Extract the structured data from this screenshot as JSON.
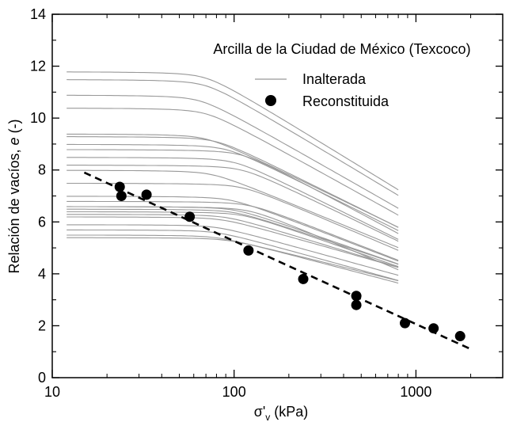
{
  "chart_data": {
    "type": "scatter",
    "title": "",
    "legend_title": "Arcilla de la Ciudad de México (Texcoco)",
    "legend_placement": "top-right",
    "xlabel": "σ'v (kPa)",
    "xlabel_main": "σ'",
    "xlabel_sub": "v",
    "xlabel_unit": " (kPa)",
    "ylabel": "Relación de vacíos, e (-)",
    "ylabel_main": "Relación de vacíos, ",
    "ylabel_italic": "e",
    "ylabel_unit": " (-)",
    "x_scale": "log",
    "xlim": [
      10,
      3000
    ],
    "ylim": [
      0,
      14
    ],
    "x_ticks": [
      10,
      100,
      1000
    ],
    "x_tick_labels": [
      "10",
      "100",
      "1000"
    ],
    "y_ticks": [
      0,
      2,
      4,
      6,
      8,
      10,
      12,
      14
    ],
    "y_tick_labels": [
      "0",
      "2",
      "4",
      "6",
      "8",
      "10",
      "12",
      "14"
    ],
    "grid": false,
    "colors": {
      "inalterada": "#999999",
      "reconstituida": "#000000"
    },
    "series": [
      {
        "name": "Inalterada",
        "style": "line",
        "curves": [
          {
            "e0": 11.8,
            "pc": 70,
            "cc": 4.3,
            "ef": 2.5
          },
          {
            "e0": 11.5,
            "pc": 70,
            "cc": 4.22,
            "ef": 2.6
          },
          {
            "e0": 10.9,
            "pc": 65,
            "cc": 4.0,
            "ef": 2.6
          },
          {
            "e0": 10.4,
            "pc": 70,
            "cc": 3.9,
            "ef": 2.7
          },
          {
            "e0": 9.4,
            "pc": 70,
            "cc": 3.4,
            "ef": 2.5
          },
          {
            "e0": 9.3,
            "pc": 80,
            "cc": 3.5,
            "ef": 2.6
          },
          {
            "e0": 9.0,
            "pc": 90,
            "cc": 3.5,
            "ef": 2.7
          },
          {
            "e0": 8.8,
            "pc": 110,
            "cc": 3.75,
            "ef": 2.9
          },
          {
            "e0": 8.5,
            "pc": 100,
            "cc": 3.5,
            "ef": 2.6
          },
          {
            "e0": 8.2,
            "pc": 110,
            "cc": 3.4,
            "ef": 2.7
          },
          {
            "e0": 7.5,
            "pc": 110,
            "cc": 3.0,
            "ef": 2.5
          },
          {
            "e0": 6.8,
            "pc": 120,
            "cc": 2.75,
            "ef": 2.5
          },
          {
            "e0": 6.6,
            "pc": 100,
            "cc": 2.45,
            "ef": 2.4
          },
          {
            "e0": 6.5,
            "pc": 100,
            "cc": 2.35,
            "ef": 2.3
          },
          {
            "e0": 6.4,
            "pc": 110,
            "cc": 2.45,
            "ef": 2.4
          },
          {
            "e0": 6.3,
            "pc": 90,
            "cc": 2.15,
            "ef": 2.1
          },
          {
            "e0": 6.6,
            "pc": 120,
            "cc": 2.95,
            "ef": 2.7
          },
          {
            "e0": 6.2,
            "pc": 85,
            "cc": 2.0,
            "ef": 2.0
          },
          {
            "e0": 5.9,
            "pc": 80,
            "cc": 1.95,
            "ef": 2.0
          },
          {
            "e0": 5.7,
            "pc": 80,
            "cc": 1.95,
            "ef": 2.0
          },
          {
            "e0": 5.5,
            "pc": 80,
            "cc": 1.85,
            "ef": 1.9
          },
          {
            "e0": 5.4,
            "pc": 90,
            "cc": 1.75,
            "ef": 2.2
          },
          {
            "e0": 7.0,
            "pc": 95,
            "cc": 2.7,
            "ef": 2.3
          },
          {
            "e0": 8.0,
            "pc": 75,
            "cc": 2.9,
            "ef": 2.3
          }
        ],
        "x_range": [
          12,
          800
        ]
      },
      {
        "name": "Reconstituida",
        "style": "marker",
        "points": [
          {
            "x": 23.5,
            "y": 7.35
          },
          {
            "x": 24,
            "y": 7.0
          },
          {
            "x": 33,
            "y": 7.05
          },
          {
            "x": 57,
            "y": 6.2
          },
          {
            "x": 120,
            "y": 4.9
          },
          {
            "x": 240,
            "y": 3.8
          },
          {
            "x": 470,
            "y": 3.15
          },
          {
            "x": 470,
            "y": 2.8
          },
          {
            "x": 870,
            "y": 2.1
          },
          {
            "x": 1250,
            "y": 1.9
          },
          {
            "x": 1750,
            "y": 1.6
          }
        ]
      },
      {
        "style": "dashed-line",
        "points": [
          {
            "x": 15,
            "y": 7.9
          },
          {
            "x": 2000,
            "y": 1.1
          }
        ]
      }
    ]
  }
}
